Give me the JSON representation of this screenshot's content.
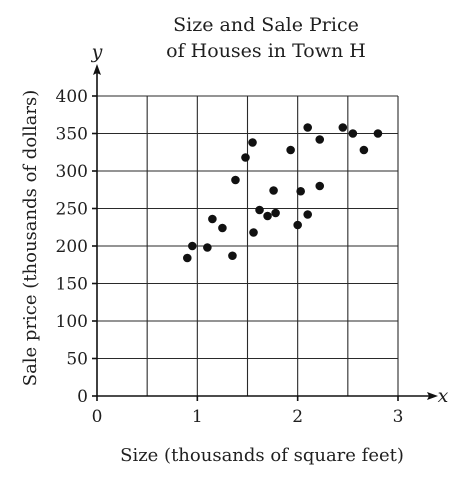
{
  "chart_data": {
    "type": "scatter",
    "title": [
      "Size and Sale Price",
      "of Houses in Town H"
    ],
    "xlabel": "Size (thousands of square feet)",
    "ylabel": "Sale price (thousands of dollars)",
    "x_axis_letter": "x",
    "y_axis_letter": "y",
    "xlim": [
      0,
      3
    ],
    "ylim": [
      0,
      400
    ],
    "x_ticks": [
      0,
      1,
      2,
      3
    ],
    "y_ticks": [
      0,
      50,
      100,
      150,
      200,
      250,
      300,
      350,
      400
    ],
    "grid": true,
    "points": [
      {
        "x": 0.9,
        "y": 184
      },
      {
        "x": 0.95,
        "y": 200
      },
      {
        "x": 1.1,
        "y": 198
      },
      {
        "x": 1.15,
        "y": 236
      },
      {
        "x": 1.25,
        "y": 224
      },
      {
        "x": 1.35,
        "y": 187
      },
      {
        "x": 1.38,
        "y": 288
      },
      {
        "x": 1.48,
        "y": 318
      },
      {
        "x": 1.55,
        "y": 338
      },
      {
        "x": 1.56,
        "y": 218
      },
      {
        "x": 1.62,
        "y": 248
      },
      {
        "x": 1.7,
        "y": 240
      },
      {
        "x": 1.76,
        "y": 274
      },
      {
        "x": 1.78,
        "y": 244
      },
      {
        "x": 1.93,
        "y": 328
      },
      {
        "x": 2.0,
        "y": 228
      },
      {
        "x": 2.03,
        "y": 273
      },
      {
        "x": 2.1,
        "y": 358
      },
      {
        "x": 2.1,
        "y": 242
      },
      {
        "x": 2.22,
        "y": 280
      },
      {
        "x": 2.22,
        "y": 342
      },
      {
        "x": 2.45,
        "y": 358
      },
      {
        "x": 2.55,
        "y": 350
      },
      {
        "x": 2.66,
        "y": 328
      },
      {
        "x": 2.8,
        "y": 350
      }
    ]
  }
}
